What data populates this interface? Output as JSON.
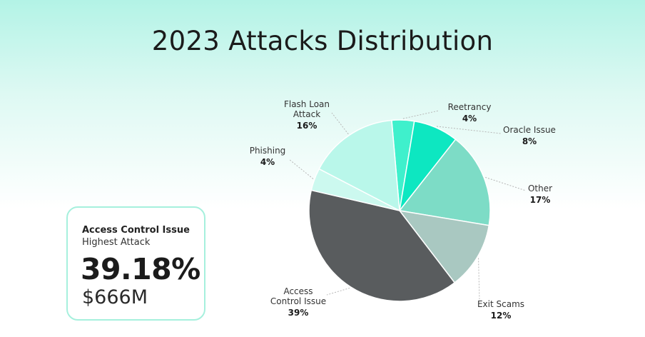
{
  "chart_data": {
    "type": "pie",
    "title": "2023 Attacks Distribution",
    "slices": [
      {
        "label": [
          "Reetrancy"
        ],
        "value": 4,
        "value_label": "4%",
        "color": "#3ff0cc"
      },
      {
        "label": [
          "Oracle Issue"
        ],
        "value": 8,
        "value_label": "8%",
        "color": "#0de7c1"
      },
      {
        "label": [
          "Other"
        ],
        "value": 17,
        "value_label": "17%",
        "color": "#7ddcc6"
      },
      {
        "label": [
          "Exit Scams"
        ],
        "value": 12,
        "value_label": "12%",
        "color": "#a9c8c1"
      },
      {
        "label": [
          "Access",
          "Control Issue"
        ],
        "value": 39,
        "value_label": "39%",
        "color": "#595c5e"
      },
      {
        "label": [
          "Phishing"
        ],
        "value": 4,
        "value_label": "4%",
        "color": "#ccf9ef"
      },
      {
        "label": [
          "Flash Loan",
          "Attack"
        ],
        "value": 16,
        "value_label": "16%",
        "color": "#b9f7ea"
      }
    ]
  },
  "highlight": {
    "name": "Access Control Issue",
    "subtitle": "Highest Attack",
    "percent": "39.18%",
    "amount": "$666M"
  }
}
